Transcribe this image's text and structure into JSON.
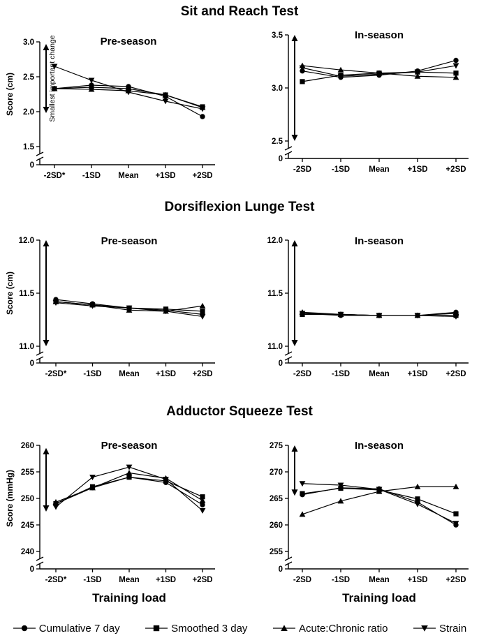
{
  "section_titles": [
    "Sit and Reach Test",
    "Dorsiflexion Lunge Test",
    "Adductor Squeeze Test"
  ],
  "xlabel": "Training load",
  "series_names": [
    "Cumulative 7 day",
    "Smoothed 3 day",
    "Acute:Chronic ratio",
    "Strain"
  ],
  "series_markers": [
    "circle",
    "square",
    "triangle-up",
    "triangle-down"
  ],
  "colors": {
    "ink": "#000000",
    "background": "#ffffff"
  },
  "chart_data": [
    {
      "type": "line",
      "test": "Sit and Reach Test",
      "title": "Pre-season",
      "ylabel": "Score (cm)",
      "ylim": [
        1.5,
        3.0
      ],
      "axis_break": true,
      "yticks": [
        "1.5",
        "2.0",
        "2.5",
        "3.0"
      ],
      "y_zero_label": "0",
      "categories": [
        "-2SD*",
        "-1SD",
        "Mean",
        "+1SD",
        "+2SD"
      ],
      "sic_arrow": [
        1.98,
        2.97
      ],
      "sic_label": "Smallest important change",
      "series": [
        {
          "name": "Cumulative 7 day",
          "values": [
            2.33,
            2.38,
            2.36,
            2.22,
            1.93
          ]
        },
        {
          "name": "Smoothed 3 day",
          "values": [
            2.33,
            2.35,
            2.33,
            2.24,
            2.07
          ]
        },
        {
          "name": "Acute:Chronic ratio",
          "values": [
            2.33,
            2.32,
            2.3,
            2.24,
            2.06
          ]
        },
        {
          "name": "Strain",
          "values": [
            2.65,
            2.45,
            2.28,
            2.15,
            2.04
          ]
        }
      ]
    },
    {
      "type": "line",
      "test": "Sit and Reach Test",
      "title": "In-season",
      "ylabel": "",
      "ylim": [
        2.5,
        3.5
      ],
      "axis_break": true,
      "yticks": [
        "2.5",
        "3.0",
        "3.5"
      ],
      "y_zero_label": "0",
      "categories": [
        "-2SD",
        "-1SD",
        "Mean",
        "+1SD",
        "+2SD"
      ],
      "sic_arrow": [
        2.5,
        3.5
      ],
      "sic_label": "",
      "series": [
        {
          "name": "Cumulative 7 day",
          "values": [
            3.16,
            3.1,
            3.12,
            3.16,
            3.26
          ]
        },
        {
          "name": "Smoothed 3 day",
          "values": [
            3.06,
            3.12,
            3.14,
            3.15,
            3.14
          ]
        },
        {
          "name": "Acute:Chronic ratio",
          "values": [
            3.21,
            3.17,
            3.14,
            3.11,
            3.1
          ]
        },
        {
          "name": "Strain",
          "values": [
            3.19,
            3.11,
            3.13,
            3.15,
            3.21
          ]
        }
      ]
    },
    {
      "type": "line",
      "test": "Dorsiflexion Lunge Test",
      "title": "Pre-season",
      "ylabel": "Score (cm)",
      "ylim": [
        11.0,
        12.0
      ],
      "axis_break": true,
      "yticks": [
        "11.0",
        "11.5",
        "12.0"
      ],
      "y_zero_label": "0",
      "categories": [
        "-2SD*",
        "-1SD",
        "Mean",
        "+1SD",
        "+2SD"
      ],
      "sic_arrow": [
        11.0,
        12.0
      ],
      "sic_label": "",
      "series": [
        {
          "name": "Cumulative 7 day",
          "values": [
            11.44,
            11.4,
            11.36,
            11.34,
            11.3
          ]
        },
        {
          "name": "Smoothed 3 day",
          "values": [
            11.42,
            11.39,
            11.36,
            11.35,
            11.33
          ]
        },
        {
          "name": "Acute:Chronic ratio",
          "values": [
            11.42,
            11.39,
            11.34,
            11.33,
            11.38
          ]
        },
        {
          "name": "Strain",
          "values": [
            11.41,
            11.38,
            11.36,
            11.33,
            11.28
          ]
        }
      ]
    },
    {
      "type": "line",
      "test": "Dorsiflexion Lunge Test",
      "title": "In-season",
      "ylabel": "",
      "ylim": [
        11.0,
        12.0
      ],
      "axis_break": true,
      "yticks": [
        "11.0",
        "11.5",
        "12.0"
      ],
      "y_zero_label": "0",
      "categories": [
        "-2SD",
        "-1SD",
        "Mean",
        "+1SD",
        "+2SD"
      ],
      "sic_arrow": [
        11.0,
        12.0
      ],
      "sic_label": "",
      "series": [
        {
          "name": "Cumulative 7 day",
          "values": [
            11.31,
            11.29,
            11.29,
            11.29,
            11.32
          ]
        },
        {
          "name": "Smoothed 3 day",
          "values": [
            11.3,
            11.3,
            11.29,
            11.29,
            11.29
          ]
        },
        {
          "name": "Acute:Chronic ratio",
          "values": [
            11.32,
            11.3,
            11.29,
            11.29,
            11.31
          ]
        },
        {
          "name": "Strain",
          "values": [
            11.31,
            11.3,
            11.29,
            11.29,
            11.28
          ]
        }
      ]
    },
    {
      "type": "line",
      "test": "Adductor Squeeze Test",
      "title": "Pre-season",
      "ylabel": "Score (mmHg)",
      "ylim": [
        240,
        260
      ],
      "axis_break": true,
      "yticks": [
        "240",
        "245",
        "250",
        "255",
        "260"
      ],
      "y_zero_label": "0",
      "categories": [
        "-2SD*",
        "-1SD",
        "Mean",
        "+1SD",
        "+2SD"
      ],
      "sic_arrow": [
        247.5,
        259.5
      ],
      "sic_label": "",
      "series": [
        {
          "name": "Cumulative 7 day",
          "values": [
            249.0,
            252.0,
            254.0,
            253.0,
            248.8
          ]
        },
        {
          "name": "Smoothed 3 day",
          "values": [
            249.0,
            252.2,
            254.0,
            253.3,
            250.3
          ]
        },
        {
          "name": "Acute:Chronic ratio",
          "values": [
            249.3,
            252.0,
            254.8,
            253.8,
            249.6
          ]
        },
        {
          "name": "Strain",
          "values": [
            248.4,
            254.0,
            255.9,
            253.6,
            247.7
          ]
        }
      ]
    },
    {
      "type": "line",
      "test": "Adductor Squeeze Test",
      "title": "In-season",
      "ylabel": "",
      "ylim": [
        255,
        275
      ],
      "axis_break": true,
      "yticks": [
        "255",
        "260",
        "265",
        "270",
        "275"
      ],
      "y_zero_label": "0",
      "categories": [
        "-2SD",
        "-1SD",
        "Mean",
        "+1SD",
        "+2SD"
      ],
      "sic_arrow": [
        265.5,
        275
      ],
      "sic_label": "",
      "series": [
        {
          "name": "Cumulative 7 day",
          "values": [
            265.7,
            267.0,
            266.8,
            264.3,
            260.0
          ]
        },
        {
          "name": "Smoothed 3 day",
          "values": [
            265.9,
            266.9,
            266.6,
            264.9,
            262.1
          ]
        },
        {
          "name": "Acute:Chronic ratio",
          "values": [
            262.0,
            264.5,
            266.3,
            267.2,
            267.2
          ]
        },
        {
          "name": "Strain",
          "values": [
            267.8,
            267.5,
            266.7,
            263.9,
            260.3
          ]
        }
      ]
    }
  ]
}
